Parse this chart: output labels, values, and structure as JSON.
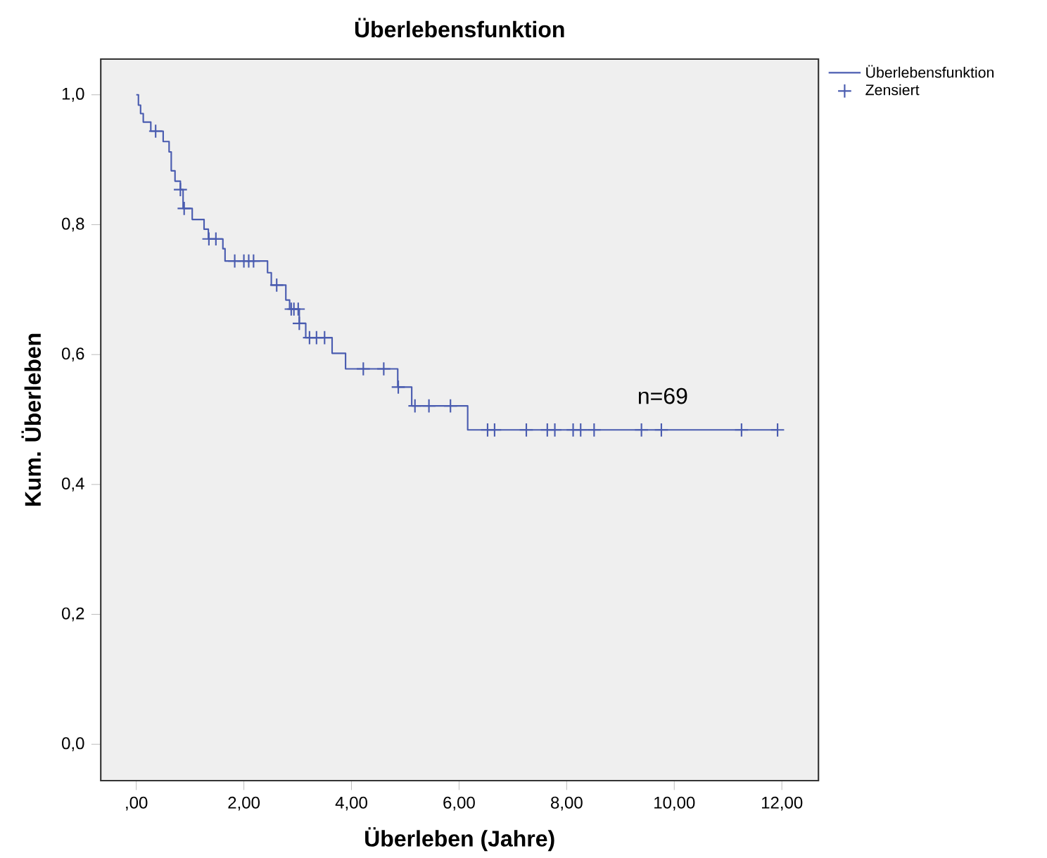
{
  "chart_data": {
    "type": "step",
    "title": "Überlebensfunktion",
    "xlabel": "Überleben (Jahre)",
    "ylabel": "Kum. Überleben",
    "xlim": [
      -0.66,
      12.68
    ],
    "ylim": [
      -0.056,
      1.055
    ],
    "xticks": [
      {
        "value": 0,
        "label": ",00"
      },
      {
        "value": 2,
        "label": "2,00"
      },
      {
        "value": 4,
        "label": "4,00"
      },
      {
        "value": 6,
        "label": "6,00"
      },
      {
        "value": 8,
        "label": "8,00"
      },
      {
        "value": 10,
        "label": "10,00"
      },
      {
        "value": 12,
        "label": "12,00"
      }
    ],
    "yticks": [
      {
        "value": 0,
        "label": "0,0"
      },
      {
        "value": 0.2,
        "label": "0,2"
      },
      {
        "value": 0.4,
        "label": "0,4"
      },
      {
        "value": 0.6,
        "label": "0,6"
      },
      {
        "value": 0.8,
        "label": "0,8"
      },
      {
        "value": 1.0,
        "label": "1,0"
      }
    ],
    "legend": "top right",
    "annotations": [
      "n=69"
    ],
    "series": [
      {
        "name": "Überlebensfunktion",
        "marker": "none",
        "color": "#4a5cb0",
        "x": [
          0,
          0.04,
          0.08,
          0.13,
          0.27,
          0.5,
          0.61,
          0.65,
          0.72,
          0.82,
          0.87,
          1.04,
          1.26,
          1.34,
          1.61,
          1.65,
          2.44,
          2.51,
          2.78,
          2.85,
          3.03,
          3.15,
          3.64,
          3.89,
          4.86,
          5.12,
          6.16,
          11.92
        ],
        "values": [
          1.0,
          0.984,
          0.971,
          0.958,
          0.944,
          0.928,
          0.912,
          0.883,
          0.867,
          0.854,
          0.825,
          0.808,
          0.793,
          0.778,
          0.763,
          0.744,
          0.726,
          0.707,
          0.684,
          0.67,
          0.648,
          0.626,
          0.602,
          0.578,
          0.55,
          0.521,
          0.484,
          0.484
        ]
      },
      {
        "name": "Zensiert",
        "type": "scatter",
        "marker": "cross",
        "color": "#4a5cb0",
        "x": [
          0.36,
          0.82,
          0.89,
          1.35,
          1.48,
          1.83,
          2.0,
          2.09,
          2.18,
          2.61,
          2.88,
          2.93,
          3.01,
          3.03,
          3.22,
          3.35,
          3.5,
          4.22,
          4.6,
          4.87,
          5.18,
          5.44,
          5.84,
          6.53,
          6.66,
          7.25,
          7.64,
          7.78,
          8.12,
          8.26,
          8.51,
          9.39,
          9.76,
          11.25,
          11.92
        ],
        "values": [
          0.944,
          0.854,
          0.825,
          0.778,
          0.778,
          0.744,
          0.744,
          0.744,
          0.744,
          0.707,
          0.67,
          0.67,
          0.67,
          0.648,
          0.626,
          0.626,
          0.626,
          0.578,
          0.578,
          0.55,
          0.521,
          0.521,
          0.521,
          0.484,
          0.484,
          0.484,
          0.484,
          0.484,
          0.484,
          0.484,
          0.484,
          0.484,
          0.484,
          0.484,
          0.484
        ]
      }
    ]
  }
}
